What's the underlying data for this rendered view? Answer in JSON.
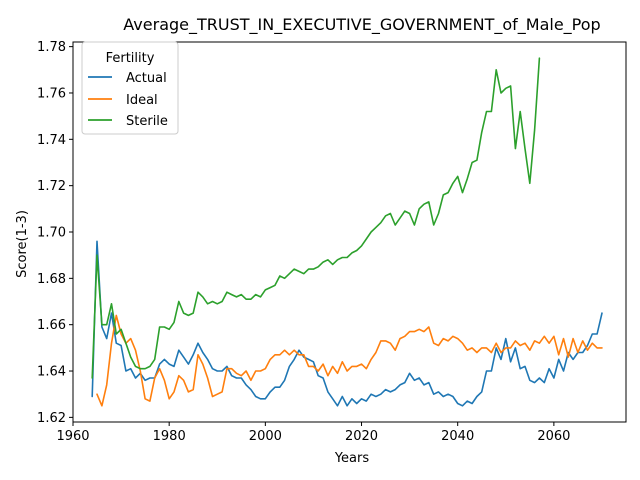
{
  "chart_data": {
    "type": "line",
    "title": "Average_TRUST_IN_EXECUTIVE_GOVERNMENT_of_Male_Pop",
    "xlabel": "Years",
    "ylabel": "Score(1-3)",
    "xlim": [
      1960,
      2075
    ],
    "ylim": [
      1.618,
      1.782
    ],
    "xticks": [
      1960,
      1980,
      2000,
      2020,
      2040,
      2060
    ],
    "yticks": [
      1.62,
      1.64,
      1.66,
      1.68,
      1.7,
      1.72,
      1.74,
      1.76,
      1.78
    ],
    "ytick_labels": [
      "1.62",
      "1.64",
      "1.66",
      "1.68",
      "1.70",
      "1.72",
      "1.74",
      "1.76",
      "1.78"
    ],
    "grid": false,
    "legend": {
      "title": "Fertility",
      "position": "upper-left"
    },
    "series": [
      {
        "name": "Actual",
        "color": "#1f77b4",
        "x": [
          1964,
          1965,
          1966,
          1967,
          1968,
          1969,
          1970,
          1971,
          1972,
          1973,
          1974,
          1975,
          1976,
          1977,
          1978,
          1979,
          1980,
          1981,
          1982,
          1983,
          1984,
          1985,
          1986,
          1987,
          1988,
          1989,
          1990,
          1991,
          1992,
          1993,
          1994,
          1995,
          1996,
          1997,
          1998,
          1999,
          2000,
          2001,
          2002,
          2003,
          2004,
          2005,
          2006,
          2007,
          2008,
          2009,
          2010,
          2011,
          2012,
          2013,
          2014,
          2015,
          2016,
          2017,
          2018,
          2019,
          2020,
          2021,
          2022,
          2023,
          2024,
          2025,
          2026,
          2027,
          2028,
          2029,
          2030,
          2031,
          2032,
          2033,
          2034,
          2035,
          2036,
          2037,
          2038,
          2039,
          2040,
          2041,
          2042,
          2043,
          2044,
          2045,
          2046,
          2047,
          2048,
          2049,
          2050,
          2051,
          2052,
          2053,
          2054,
          2055,
          2056,
          2057,
          2058,
          2059,
          2060,
          2061,
          2062,
          2063,
          2064,
          2065,
          2066,
          2067,
          2068,
          2069,
          2070
        ],
        "y": [
          1.629,
          1.696,
          1.659,
          1.654,
          1.665,
          1.652,
          1.651,
          1.64,
          1.641,
          1.637,
          1.639,
          1.636,
          1.637,
          1.637,
          1.643,
          1.645,
          1.643,
          1.642,
          1.649,
          1.646,
          1.643,
          1.647,
          1.652,
          1.648,
          1.645,
          1.641,
          1.64,
          1.64,
          1.642,
          1.638,
          1.637,
          1.637,
          1.634,
          1.632,
          1.629,
          1.628,
          1.628,
          1.631,
          1.633,
          1.633,
          1.636,
          1.642,
          1.645,
          1.649,
          1.646,
          1.645,
          1.644,
          1.638,
          1.637,
          1.631,
          1.628,
          1.625,
          1.629,
          1.625,
          1.628,
          1.626,
          1.628,
          1.627,
          1.63,
          1.629,
          1.63,
          1.632,
          1.631,
          1.632,
          1.634,
          1.635,
          1.639,
          1.636,
          1.637,
          1.634,
          1.635,
          1.63,
          1.631,
          1.629,
          1.63,
          1.629,
          1.626,
          1.625,
          1.627,
          1.626,
          1.629,
          1.631,
          1.64,
          1.64,
          1.65,
          1.645,
          1.654,
          1.644,
          1.65,
          1.641,
          1.642,
          1.636,
          1.635,
          1.637,
          1.635,
          1.641,
          1.637,
          1.645,
          1.64,
          1.648,
          1.645,
          1.648,
          1.648,
          1.651,
          1.656,
          1.656,
          1.665
        ]
      },
      {
        "name": "Ideal",
        "color": "#ff7f0e",
        "x": [
          1965,
          1966,
          1967,
          1968,
          1969,
          1970,
          1971,
          1972,
          1973,
          1974,
          1975,
          1976,
          1977,
          1978,
          1979,
          1980,
          1981,
          1982,
          1983,
          1984,
          1985,
          1986,
          1987,
          1988,
          1989,
          1990,
          1991,
          1992,
          1993,
          1994,
          1995,
          1996,
          1997,
          1998,
          1999,
          2000,
          2001,
          2002,
          2003,
          2004,
          2005,
          2006,
          2007,
          2008,
          2009,
          2010,
          2011,
          2012,
          2013,
          2014,
          2015,
          2016,
          2017,
          2018,
          2019,
          2020,
          2021,
          2022,
          2023,
          2024,
          2025,
          2026,
          2027,
          2028,
          2029,
          2030,
          2031,
          2032,
          2033,
          2034,
          2035,
          2036,
          2037,
          2038,
          2039,
          2040,
          2041,
          2042,
          2043,
          2044,
          2045,
          2046,
          2047,
          2048,
          2049,
          2050,
          2051,
          2052,
          2053,
          2054,
          2055,
          2056,
          2057,
          2058,
          2059,
          2060,
          2061,
          2062,
          2063,
          2064,
          2065,
          2066,
          2067,
          2068,
          2069,
          2070
        ],
        "y": [
          1.63,
          1.625,
          1.634,
          1.652,
          1.664,
          1.656,
          1.652,
          1.654,
          1.649,
          1.64,
          1.628,
          1.627,
          1.637,
          1.641,
          1.636,
          1.628,
          1.631,
          1.638,
          1.636,
          1.631,
          1.632,
          1.647,
          1.643,
          1.637,
          1.629,
          1.63,
          1.631,
          1.641,
          1.641,
          1.639,
          1.638,
          1.64,
          1.636,
          1.64,
          1.64,
          1.641,
          1.645,
          1.647,
          1.647,
          1.649,
          1.647,
          1.649,
          1.647,
          1.647,
          1.642,
          1.642,
          1.64,
          1.643,
          1.638,
          1.642,
          1.639,
          1.644,
          1.64,
          1.642,
          1.642,
          1.643,
          1.641,
          1.645,
          1.648,
          1.653,
          1.653,
          1.652,
          1.649,
          1.654,
          1.655,
          1.657,
          1.657,
          1.658,
          1.657,
          1.659,
          1.652,
          1.651,
          1.654,
          1.653,
          1.655,
          1.654,
          1.652,
          1.649,
          1.65,
          1.648,
          1.65,
          1.65,
          1.648,
          1.652,
          1.648,
          1.65,
          1.65,
          1.653,
          1.651,
          1.652,
          1.649,
          1.653,
          1.652,
          1.655,
          1.652,
          1.655,
          1.647,
          1.654,
          1.646,
          1.654,
          1.648,
          1.653,
          1.649,
          1.652,
          1.65,
          1.65
        ]
      },
      {
        "name": "Sterile",
        "color": "#2ca02c",
        "x": [
          1964,
          1965,
          1966,
          1967,
          1968,
          1969,
          1970,
          1971,
          1972,
          1973,
          1974,
          1975,
          1976,
          1977,
          1978,
          1979,
          1980,
          1981,
          1982,
          1983,
          1984,
          1985,
          1986,
          1987,
          1988,
          1989,
          1990,
          1991,
          1992,
          1993,
          1994,
          1995,
          1996,
          1997,
          1998,
          1999,
          2000,
          2001,
          2002,
          2003,
          2004,
          2005,
          2006,
          2007,
          2008,
          2009,
          2010,
          2011,
          2012,
          2013,
          2014,
          2015,
          2016,
          2017,
          2018,
          2019,
          2020,
          2021,
          2022,
          2023,
          2024,
          2025,
          2026,
          2027,
          2028,
          2029,
          2030,
          2031,
          2032,
          2033,
          2034,
          2035,
          2036,
          2037,
          2038,
          2039,
          2040,
          2041,
          2042,
          2043,
          2044,
          2045,
          2046,
          2047,
          2048,
          2049,
          2050,
          2051,
          2052,
          2053,
          2054,
          2055,
          2056,
          2057
        ],
        "y": [
          1.637,
          1.69,
          1.66,
          1.66,
          1.669,
          1.656,
          1.658,
          1.652,
          1.646,
          1.642,
          1.641,
          1.641,
          1.642,
          1.645,
          1.659,
          1.659,
          1.658,
          1.661,
          1.67,
          1.665,
          1.664,
          1.665,
          1.674,
          1.672,
          1.669,
          1.67,
          1.669,
          1.67,
          1.674,
          1.673,
          1.672,
          1.673,
          1.671,
          1.671,
          1.673,
          1.672,
          1.675,
          1.676,
          1.677,
          1.681,
          1.68,
          1.682,
          1.684,
          1.683,
          1.682,
          1.684,
          1.684,
          1.685,
          1.687,
          1.688,
          1.686,
          1.688,
          1.689,
          1.689,
          1.691,
          1.692,
          1.694,
          1.697,
          1.7,
          1.702,
          1.704,
          1.707,
          1.708,
          1.703,
          1.706,
          1.709,
          1.708,
          1.703,
          1.71,
          1.712,
          1.713,
          1.703,
          1.708,
          1.716,
          1.717,
          1.721,
          1.724,
          1.717,
          1.723,
          1.73,
          1.731,
          1.743,
          1.752,
          1.752,
          1.77,
          1.76,
          1.762,
          1.763,
          1.736,
          1.752,
          1.736,
          1.721,
          1.744,
          1.775
        ]
      }
    ]
  }
}
